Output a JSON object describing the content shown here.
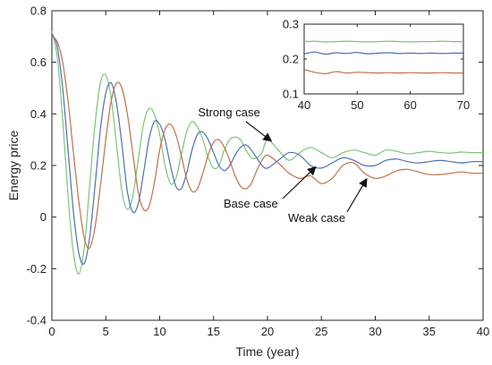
{
  "chart_data": [
    {
      "type": "line",
      "xlabel": "Time (year)",
      "ylabel": "Energy price",
      "xlim": [
        0,
        40
      ],
      "ylim": [
        -0.4,
        0.8
      ],
      "xticks": [
        "0",
        "5",
        "10",
        "15",
        "20",
        "25",
        "30",
        "35",
        "40"
      ],
      "yticks": [
        "-0.4",
        "-0.2",
        "0",
        "0.2",
        "0.4",
        "0.6",
        "0.8"
      ],
      "grid": false,
      "legend": "none",
      "series": [
        {
          "color": "#7cc576",
          "x": [
            0,
            0.5,
            1,
            1.5,
            2,
            2.5,
            3,
            3.5,
            4,
            4.5,
            5,
            5.5,
            6,
            6.5,
            7,
            7.5,
            8,
            8.5,
            9,
            9.5,
            10,
            10.5,
            11,
            11.5,
            12,
            12.5,
            13,
            13.5,
            14,
            14.5,
            15,
            15.5,
            16,
            16.5,
            17,
            17.5,
            18,
            18.5,
            19,
            19.5,
            20,
            21,
            22,
            23,
            24,
            25,
            26,
            27,
            28,
            29,
            30,
            31,
            32,
            33,
            34,
            35,
            36,
            37,
            38,
            39,
            40
          ],
          "y": [
            0.72,
            0.62,
            0.38,
            0.08,
            -0.14,
            -0.22,
            -0.12,
            0.12,
            0.36,
            0.52,
            0.55,
            0.46,
            0.28,
            0.1,
            0.03,
            0.08,
            0.22,
            0.36,
            0.42,
            0.4,
            0.32,
            0.2,
            0.13,
            0.15,
            0.24,
            0.33,
            0.37,
            0.35,
            0.3,
            0.23,
            0.19,
            0.2,
            0.26,
            0.3,
            0.31,
            0.3,
            0.26,
            0.23,
            0.23,
            0.25,
            0.3,
            0.26,
            0.22,
            0.25,
            0.27,
            0.25,
            0.23,
            0.25,
            0.26,
            0.25,
            0.24,
            0.26,
            0.255,
            0.245,
            0.25,
            0.255,
            0.25,
            0.248,
            0.252,
            0.25,
            0.25
          ]
        },
        {
          "color": "#4f6fb5",
          "x": [
            0,
            0.5,
            1,
            1.5,
            2,
            2.5,
            3,
            3.5,
            4,
            4.5,
            5,
            5.5,
            6,
            6.5,
            7,
            7.5,
            8,
            8.5,
            9,
            9.5,
            10,
            10.5,
            11,
            11.5,
            12,
            12.5,
            13,
            13.5,
            14,
            14.5,
            15,
            15.5,
            16,
            16.5,
            17,
            17.5,
            18,
            18.5,
            19,
            19.5,
            20,
            21,
            22,
            23,
            24,
            25,
            26,
            27,
            28,
            29,
            30,
            31,
            32,
            33,
            34,
            35,
            36,
            37,
            38,
            39,
            40
          ],
          "y": [
            0.71,
            0.66,
            0.5,
            0.26,
            0.02,
            -0.14,
            -0.18,
            -0.08,
            0.12,
            0.34,
            0.48,
            0.52,
            0.44,
            0.28,
            0.1,
            0.02,
            0.05,
            0.17,
            0.3,
            0.37,
            0.36,
            0.3,
            0.2,
            0.12,
            0.11,
            0.17,
            0.26,
            0.32,
            0.33,
            0.3,
            0.25,
            0.2,
            0.18,
            0.2,
            0.24,
            0.27,
            0.28,
            0.26,
            0.23,
            0.2,
            0.19,
            0.22,
            0.25,
            0.24,
            0.2,
            0.19,
            0.21,
            0.23,
            0.22,
            0.2,
            0.2,
            0.22,
            0.225,
            0.215,
            0.21,
            0.215,
            0.22,
            0.215,
            0.21,
            0.215,
            0.215
          ]
        },
        {
          "color": "#c0704a",
          "x": [
            0,
            0.5,
            1,
            1.5,
            2,
            2.5,
            3,
            3.5,
            4,
            4.5,
            5,
            5.5,
            6,
            6.5,
            7,
            7.5,
            8,
            8.5,
            9,
            9.5,
            10,
            10.5,
            11,
            11.5,
            12,
            12.5,
            13,
            13.5,
            14,
            14.5,
            15,
            15.5,
            16,
            16.5,
            17,
            17.5,
            18,
            18.5,
            19,
            19.5,
            20,
            21,
            22,
            23,
            24,
            25,
            26,
            27,
            28,
            29,
            30,
            31,
            32,
            33,
            34,
            35,
            36,
            37,
            38,
            39,
            40
          ],
          "y": [
            0.7,
            0.68,
            0.6,
            0.45,
            0.25,
            0.06,
            -0.08,
            -0.12,
            -0.04,
            0.12,
            0.3,
            0.45,
            0.52,
            0.5,
            0.4,
            0.25,
            0.1,
            0.03,
            0.04,
            0.13,
            0.26,
            0.34,
            0.36,
            0.32,
            0.24,
            0.15,
            0.1,
            0.11,
            0.17,
            0.24,
            0.29,
            0.3,
            0.27,
            0.22,
            0.16,
            0.12,
            0.11,
            0.13,
            0.18,
            0.22,
            0.24,
            0.21,
            0.17,
            0.15,
            0.16,
            0.13,
            0.15,
            0.2,
            0.21,
            0.17,
            0.15,
            0.16,
            0.18,
            0.185,
            0.175,
            0.165,
            0.165,
            0.17,
            0.175,
            0.17,
            0.17
          ]
        }
      ],
      "annotations": [
        {
          "text": "Strong case",
          "target": [
            20.5,
            0.29
          ]
        },
        {
          "text": "Base case",
          "target": [
            24.6,
            0.2
          ]
        },
        {
          "text": "Weak case",
          "target": [
            29.3,
            0.155
          ]
        }
      ]
    },
    {
      "type": "line",
      "xlim": [
        40,
        70
      ],
      "ylim": [
        0.1,
        0.3
      ],
      "xticks": [
        "40",
        "50",
        "60",
        "70"
      ],
      "yticks": [
        "0.1",
        "0.2",
        "0.3"
      ],
      "grid": false,
      "legend": "none",
      "series": [
        {
          "color": "#7cc576",
          "x": [
            40,
            42,
            44,
            46,
            48,
            50,
            52,
            54,
            56,
            58,
            60,
            62,
            64,
            66,
            68,
            70
          ],
          "y": [
            0.25,
            0.251,
            0.249,
            0.25,
            0.251,
            0.25,
            0.249,
            0.25,
            0.251,
            0.25,
            0.249,
            0.25,
            0.25,
            0.251,
            0.25,
            0.25
          ]
        },
        {
          "color": "#4f6fb5",
          "x": [
            40,
            42,
            44,
            46,
            48,
            50,
            52,
            54,
            56,
            58,
            60,
            62,
            64,
            66,
            68,
            70
          ],
          "y": [
            0.215,
            0.22,
            0.214,
            0.218,
            0.216,
            0.219,
            0.215,
            0.217,
            0.218,
            0.216,
            0.217,
            0.216,
            0.217,
            0.216,
            0.217,
            0.217
          ]
        },
        {
          "color": "#c0704a",
          "x": [
            40,
            42,
            44,
            46,
            48,
            50,
            52,
            54,
            56,
            58,
            60,
            62,
            64,
            66,
            68,
            70
          ],
          "y": [
            0.17,
            0.162,
            0.158,
            0.164,
            0.16,
            0.162,
            0.161,
            0.16,
            0.161,
            0.16,
            0.161,
            0.16,
            0.16,
            0.161,
            0.16,
            0.16
          ]
        }
      ]
    }
  ]
}
